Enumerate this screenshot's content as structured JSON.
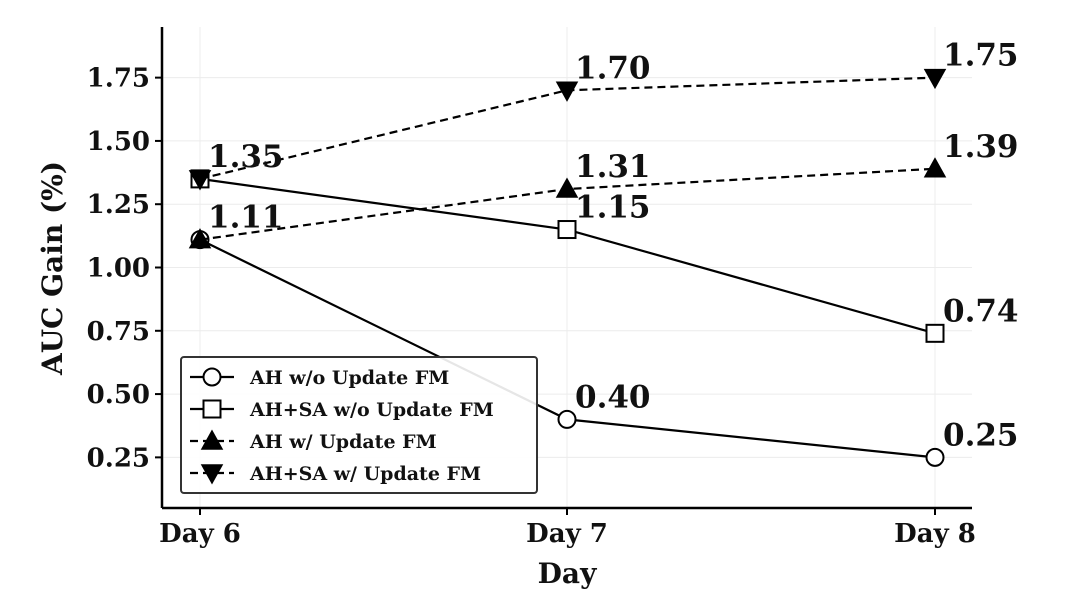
{
  "chart_data": {
    "type": "line",
    "title": "",
    "xlabel": "Day",
    "ylabel": "AUC Gain (%)",
    "categories": [
      "Day 6",
      "Day 7",
      "Day 8"
    ],
    "ylim": [
      0.05,
      1.95
    ],
    "yticks": [
      0.25,
      0.5,
      0.75,
      1.0,
      1.25,
      1.5,
      1.75
    ],
    "ytick_labels": [
      "0.25",
      "0.50",
      "0.75",
      "1.00",
      "1.25",
      "1.50",
      "1.75"
    ],
    "grid": true,
    "legend_position": "bottom-left",
    "series": [
      {
        "name": "AH w/o Update FM",
        "values": [
          1.11,
          0.4,
          0.25
        ],
        "labels": [
          "1.11",
          "0.40",
          "0.25"
        ],
        "marker": "circle",
        "line_style": "solid",
        "marker_fill": "#ffffff"
      },
      {
        "name": "AH+SA w/o Update FM",
        "values": [
          1.35,
          1.15,
          0.74
        ],
        "labels": [
          "1.35",
          "1.15",
          "0.74"
        ],
        "marker": "square",
        "line_style": "solid",
        "marker_fill": "#ffffff"
      },
      {
        "name": "AH w/ Update FM",
        "values": [
          1.11,
          1.31,
          1.39
        ],
        "labels": [
          "",
          "1.31",
          "1.39"
        ],
        "marker": "triangle-up",
        "line_style": "dashed",
        "marker_fill": "#000000"
      },
      {
        "name": "AH+SA w/ Update FM",
        "values": [
          1.35,
          1.7,
          1.75
        ],
        "labels": [
          "",
          "1.70",
          "1.75"
        ],
        "marker": "triangle-down",
        "line_style": "dashed",
        "marker_fill": "#000000"
      }
    ]
  }
}
